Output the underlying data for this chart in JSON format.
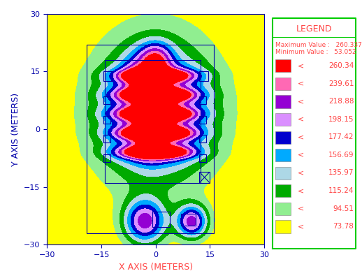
{
  "title": "",
  "xlabel": "X AXIS (METERS)",
  "ylabel": "Y AXIS (METERS)",
  "xlim": [
    -30,
    30
  ],
  "ylim": [
    -30,
    30
  ],
  "xticks": [
    -30,
    -15,
    0,
    15,
    30
  ],
  "yticks": [
    -30,
    -15,
    0,
    15,
    30
  ],
  "max_value": 260.337,
  "min_value": 53.052,
  "legend_title": "LEGEND",
  "legend_entries": [
    {
      "color": "#ff0000",
      "label": "< 260.34"
    },
    {
      "color": "#ff69b4",
      "label": "< 239.61"
    },
    {
      "color": "#9400d3",
      "label": "< 218.88"
    },
    {
      "color": "#da8fff",
      "label": "< 198.15"
    },
    {
      "color": "#0000cd",
      "label": "< 177.42"
    },
    {
      "color": "#00aaff",
      "label": "< 156.69"
    },
    {
      "color": "#add8e6",
      "label": "< 135.97"
    },
    {
      "color": "#00aa00",
      "label": "< 115.24"
    },
    {
      "color": "#90ee90",
      "label": "< 94.51"
    },
    {
      "color": "#ffff00",
      "label": "< 73.78"
    }
  ],
  "contour_levels": [
    53.052,
    73.78,
    94.51,
    115.24,
    135.97,
    156.69,
    177.42,
    198.15,
    218.88,
    239.61,
    260.34,
    280.0
  ],
  "contour_colors": [
    "#ffff00",
    "#90ee90",
    "#00aa00",
    "#add8e6",
    "#00aaff",
    "#0000cd",
    "#da8fff",
    "#9400d3",
    "#ff69b4",
    "#ff0000",
    "#ff0000"
  ],
  "bg_color": "#ffffff",
  "axis_label_color_x": "#ff4444",
  "axis_label_color_y": "#0000aa",
  "tick_color": "#0000aa",
  "legend_border_color": "#00cc00",
  "legend_text_color": "#ff4444"
}
